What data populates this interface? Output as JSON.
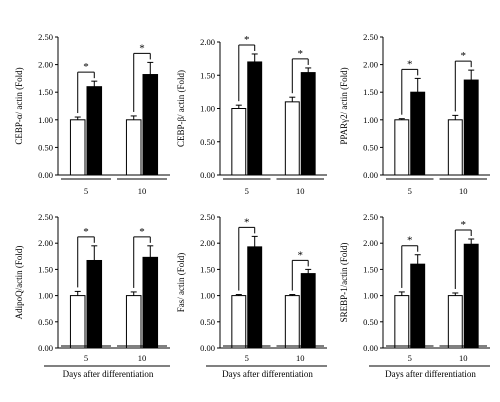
{
  "chart_data": [
    {
      "type": "bar",
      "ylabel": "CEBP-α/ actin (Fold)",
      "xlabel": "",
      "ylim": [
        0,
        2.5
      ],
      "yticks": [
        "0.00",
        "0.50",
        "1.00",
        "1.50",
        "2.00",
        "2.50"
      ],
      "categories": [
        "5",
        "10"
      ],
      "series": [
        {
          "values": [
            1.0,
            1.6
          ],
          "errors": [
            0.05,
            0.1
          ],
          "colors": [
            "#ffffff",
            "#000000"
          ]
        },
        {
          "values": [
            1.0,
            1.82
          ],
          "errors": [
            0.07,
            0.22
          ],
          "colors": [
            "#ffffff",
            "#000000"
          ]
        }
      ],
      "significance": [
        "*",
        "*"
      ]
    },
    {
      "type": "bar",
      "ylabel": "CEBP-β/ actin (Fold)",
      "xlabel": "",
      "ylim": [
        0,
        2.0
      ],
      "yticks": [
        "0.00",
        "0.50",
        "1.00",
        "1.50",
        "2.00"
      ],
      "categories": [
        "5",
        "10"
      ],
      "series": [
        {
          "values": [
            1.0,
            1.7
          ],
          "errors": [
            0.05,
            0.12
          ],
          "colors": [
            "#ffffff",
            "#000000"
          ]
        },
        {
          "values": [
            1.1,
            1.54
          ],
          "errors": [
            0.07,
            0.07
          ],
          "colors": [
            "#ffffff",
            "#000000"
          ]
        }
      ],
      "significance": [
        "*",
        "*"
      ]
    },
    {
      "type": "bar",
      "ylabel": "PPARγ2/ actin (Fold)",
      "xlabel": "",
      "ylim": [
        0,
        2.5
      ],
      "yticks": [
        "0.00",
        "0.50",
        "1.00",
        "1.50",
        "2.00",
        "2.50"
      ],
      "categories": [
        "5",
        "10"
      ],
      "series": [
        {
          "values": [
            1.0,
            1.5
          ],
          "errors": [
            0.02,
            0.25
          ],
          "colors": [
            "#ffffff",
            "#000000"
          ]
        },
        {
          "values": [
            1.0,
            1.72
          ],
          "errors": [
            0.08,
            0.18
          ],
          "colors": [
            "#ffffff",
            "#000000"
          ]
        }
      ],
      "significance": [
        "*",
        "*"
      ]
    },
    {
      "type": "bar",
      "ylabel": "AdipoQ/actin (Fold)",
      "xlabel": "Days after differentiation",
      "ylim": [
        0,
        2.5
      ],
      "yticks": [
        "0.00",
        "0.50",
        "1.00",
        "1.50",
        "2.00",
        "2.50"
      ],
      "categories": [
        "5",
        "10"
      ],
      "series": [
        {
          "values": [
            1.0,
            1.67
          ],
          "errors": [
            0.08,
            0.28
          ],
          "colors": [
            "#ffffff",
            "#000000"
          ]
        },
        {
          "values": [
            1.0,
            1.73
          ],
          "errors": [
            0.07,
            0.22
          ],
          "colors": [
            "#ffffff",
            "#000000"
          ]
        }
      ],
      "significance": [
        "*",
        "*"
      ]
    },
    {
      "type": "bar",
      "ylabel": "Fas/ actin (Fold)",
      "xlabel": "Days after differentiation",
      "ylim": [
        0,
        2.5
      ],
      "yticks": [
        "0.00",
        "0.50",
        "1.00",
        "1.50",
        "2.00",
        "2.50"
      ],
      "categories": [
        "5",
        "10"
      ],
      "series": [
        {
          "values": [
            1.0,
            1.93
          ],
          "errors": [
            0.02,
            0.2
          ],
          "colors": [
            "#ffffff",
            "#000000"
          ]
        },
        {
          "values": [
            1.0,
            1.42
          ],
          "errors": [
            0.02,
            0.08
          ],
          "colors": [
            "#ffffff",
            "#000000"
          ]
        }
      ],
      "significance": [
        "*",
        "*"
      ]
    },
    {
      "type": "bar",
      "ylabel": "SREBP-1/actin (Fold)",
      "xlabel": "Days after differentiation",
      "ylim": [
        0,
        2.5
      ],
      "yticks": [
        "0.00",
        "0.50",
        "1.00",
        "1.50",
        "2.00",
        "2.50"
      ],
      "categories": [
        "5",
        "10"
      ],
      "series": [
        {
          "values": [
            1.0,
            1.6
          ],
          "errors": [
            0.07,
            0.18
          ],
          "colors": [
            "#ffffff",
            "#000000"
          ]
        },
        {
          "values": [
            1.0,
            1.98
          ],
          "errors": [
            0.05,
            0.1
          ],
          "colors": [
            "#ffffff",
            "#000000"
          ]
        }
      ],
      "significance": [
        "*",
        "*"
      ]
    }
  ]
}
